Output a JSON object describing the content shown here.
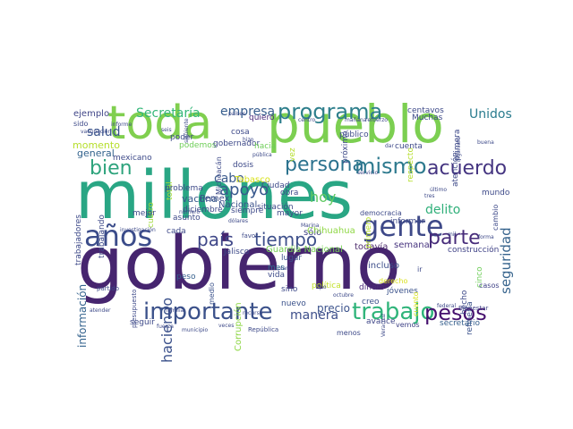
{
  "title": "",
  "words": [
    {
      "text": "gobierno",
      "color": "#46256f"
    },
    {
      "text": "millones",
      "color": "#29a684"
    },
    {
      "text": "pueblo",
      "color": "#7ccf51"
    },
    {
      "text": "toda",
      "color": "#80cf4f"
    },
    {
      "text": "años",
      "color": "#3b4c8a"
    },
    {
      "text": "gente",
      "color": "#3e4988"
    },
    {
      "text": "programa",
      "color": "#2e7f8c"
    },
    {
      "text": "importante",
      "color": "#3b518a"
    },
    {
      "text": "trabajo",
      "color": "#2fb47a"
    },
    {
      "text": "pesos",
      "color": "#45106e"
    },
    {
      "text": "persona",
      "color": "#2b728e"
    },
    {
      "text": "mismo",
      "color": "#2e7a8e"
    },
    {
      "text": "acuerdo",
      "color": "#453581"
    },
    {
      "text": "país",
      "color": "#3f4788"
    },
    {
      "text": "tiempo",
      "color": "#3d4f8a"
    },
    {
      "text": "parte",
      "color": "#472c7a"
    },
    {
      "text": "bien",
      "color": "#2da37c"
    },
    {
      "text": "hoy",
      "color": "#5ec962"
    },
    {
      "text": "apoyo",
      "color": "#38588c"
    },
    {
      "text": "Unidos",
      "color": "#2a7c8e"
    },
    {
      "text": "Secretaría",
      "color": "#35b779"
    },
    {
      "text": "empresa",
      "color": "#365d8d"
    },
    {
      "text": "salud",
      "color": "#3a548c"
    },
    {
      "text": "seguridad",
      "color": "#37648d"
    },
    {
      "text": "manera",
      "color": "#3d4e8a"
    },
    {
      "text": "precio",
      "color": "#3b528b"
    },
    {
      "text": "delito",
      "color": "#30b07a"
    },
    {
      "text": "haciendo",
      "color": "#3b518b"
    },
    {
      "text": "cabo",
      "color": "#3b5a8c"
    },
    {
      "text": "vacuna",
      "color": "#38598c"
    },
    {
      "text": "información",
      "color": "#33628d"
    },
    {
      "text": "semana",
      "color": "#46337e"
    },
    {
      "text": "sólo",
      "color": "#414487"
    },
    {
      "text": "Pemex",
      "color": "#3d4d8a"
    },
    {
      "text": "Nacional",
      "color": "#3b528b"
    },
    {
      "text": "general",
      "color": "#33638d"
    },
    {
      "text": "momento",
      "color": "#b5de2b"
    },
    {
      "text": "ejemplo",
      "color": "#404688"
    },
    {
      "text": "total",
      "color": "#a5db36"
    },
    {
      "text": "Corrupción",
      "color": "#8ed645"
    },
    {
      "text": "Tabasco",
      "color": "#d8e219"
    },
    {
      "text": "Chihuahua",
      "color": "#8fd744"
    },
    {
      "text": "Guardia Nacional",
      "color": "#75d054"
    },
    {
      "text": "Jalisco",
      "color": "#3e4a89"
    },
    {
      "text": "todavía",
      "color": "#4f2e6f"
    },
    {
      "text": "construcción",
      "color": "#404387"
    },
    {
      "text": "refinería",
      "color": "#3b528b"
    },
    {
      "text": "secretario",
      "color": "#355f8d"
    },
    {
      "text": "Bienestar",
      "color": "#414487"
    },
    {
      "text": "cinco",
      "color": "#6ece58"
    },
    {
      "text": "hecho",
      "color": "#3e4a89"
    },
    {
      "text": "casos",
      "color": "#404387"
    },
    {
      "text": "incluso",
      "color": "#3d4e8a"
    },
    {
      "text": "jóvenes",
      "color": "#3b528b"
    },
    {
      "text": "dinero",
      "color": "#4b2a7a"
    },
    {
      "text": "política",
      "color": "#c3e02c"
    },
    {
      "text": "derecho",
      "color": "#d9e021"
    },
    {
      "text": "creo",
      "color": "#3b518b"
    },
    {
      "text": "avance",
      "color": "#3f4788"
    },
    {
      "text": "vemos",
      "color": "#404387"
    },
    {
      "text": "nuevo",
      "color": "#3b528b"
    },
    {
      "text": "vida",
      "color": "#3e4a89"
    },
    {
      "text": "sino",
      "color": "#3e4a89"
    },
    {
      "text": "lugar",
      "color": "#3b528b"
    },
    {
      "text": "mes",
      "color": "#2e6b8e"
    },
    {
      "text": "medio",
      "color": "#3b528b"
    },
    {
      "text": "peso",
      "color": "#355f8d"
    },
    {
      "text": "seguir",
      "color": "#3e4a89"
    },
    {
      "text": "cada",
      "color": "#3e4a89"
    },
    {
      "text": "trabajadores",
      "color": "#3e4a89"
    },
    {
      "text": "trabajando",
      "color": "#3e4a89"
    },
    {
      "text": "mexicano",
      "color": "#3e4a89"
    },
    {
      "text": "cuatro",
      "color": "#a0da39"
    },
    {
      "text": "problema",
      "color": "#3e4a89"
    },
    {
      "text": "mejor",
      "color": "#3e4a89"
    },
    {
      "text": "asunto",
      "color": "#3e4a89"
    },
    {
      "text": "diciembre",
      "color": "#3e4a89"
    },
    {
      "text": "poder",
      "color": "#3e4a89"
    },
    {
      "text": "podemos",
      "color": "#6ece58"
    },
    {
      "text": "gobernador",
      "color": "#3e4a89"
    },
    {
      "text": "dosis",
      "color": "#3e4a89"
    },
    {
      "text": "cosa",
      "color": "#3e4a89"
    },
    {
      "text": "quiero",
      "color": "#4b2a7a"
    },
    {
      "text": "hacia",
      "color": "#6ece58"
    },
    {
      "text": "obra",
      "color": "#3e4a89"
    },
    {
      "text": "mayor",
      "color": "#3e4a89"
    },
    {
      "text": "situación",
      "color": "#3e4a89"
    },
    {
      "text": "siempre",
      "color": "#3e4a89"
    },
    {
      "text": "Ciudad",
      "color": "#3e4a89"
    },
    {
      "text": "vez",
      "color": "#b5de2b"
    },
    {
      "text": "público",
      "color": "#3e4a89"
    },
    {
      "text": "próximo",
      "color": "#3e4a89"
    },
    {
      "text": "primero",
      "color": "#b5de2b"
    },
    {
      "text": "respecto",
      "color": "#b5de2b"
    },
    {
      "text": "cuenta",
      "color": "#3e4a89"
    },
    {
      "text": "Muchas",
      "color": "#3e4a89"
    },
    {
      "text": "centavos",
      "color": "#3e4a89"
    },
    {
      "text": "atención",
      "color": "#3e4a89"
    },
    {
      "text": "primera",
      "color": "#3e4a89"
    },
    {
      "text": "mundo",
      "color": "#3e4a89"
    },
    {
      "text": "cambio",
      "color": "#3e4a89"
    },
    {
      "text": "informar",
      "color": "#3e4a89"
    },
    {
      "text": "democracia",
      "color": "#3e4a89"
    },
    {
      "text": "cuanto",
      "color": "#d8e219"
    },
    {
      "text": "ir",
      "color": "#3e4a89"
    },
    {
      "text": "Michoacán",
      "color": "#3e4a89"
    },
    {
      "text": "vacunación",
      "color": "#3e4a89"
    },
    {
      "text": "informe",
      "color": "#3e4a89"
    },
    {
      "text": "sido",
      "color": "#3e4a89"
    },
    {
      "text": "seis",
      "color": "#3e4a89"
    },
    {
      "text": "siguiente",
      "color": "#3e4a89"
    },
    {
      "text": "investigación",
      "color": "#3e4a89"
    },
    {
      "text": "favor",
      "color": "#3e4a89"
    },
    {
      "text": "dólares",
      "color": "#3e4a89"
    },
    {
      "text": "número",
      "color": "#3e4a89"
    },
    {
      "text": "familia",
      "color": "#3e4a89"
    },
    {
      "text": "recurso",
      "color": "#3e4a89"
    },
    {
      "text": "veces",
      "color": "#3e4a89"
    },
    {
      "text": "República",
      "color": "#3e4a89"
    },
    {
      "text": "municipio",
      "color": "#3e4a89"
    },
    {
      "text": "fuerza",
      "color": "#3e4a89"
    },
    {
      "text": "atender",
      "color": "#3e4a89"
    },
    {
      "text": "partido",
      "color": "#3e4a89"
    },
    {
      "text": "presupuesto",
      "color": "#3e4a89"
    },
    {
      "text": "menos",
      "color": "#3e4a89"
    },
    {
      "text": "servicio",
      "color": "#3e4a89"
    },
    {
      "text": "Marina",
      "color": "#3e4a89"
    },
    {
      "text": "tipo",
      "color": "#3e4a89"
    },
    {
      "text": "Veracruz",
      "color": "#3e4a89"
    },
    {
      "text": "federal",
      "color": "#3e4a89"
    },
    {
      "text": "octubre",
      "color": "#3e4a89"
    },
    {
      "text": "buena",
      "color": "#3e4a89"
    },
    {
      "text": "ingeniero",
      "color": "#3e4a89"
    },
    {
      "text": "mañana",
      "color": "#3e4a89"
    },
    {
      "text": "refuerzo",
      "color": "#3e4a89"
    },
    {
      "text": "países",
      "color": "#3e4a89"
    },
    {
      "text": "hizo",
      "color": "#3e4a89"
    },
    {
      "text": "último",
      "color": "#3e4a89"
    },
    {
      "text": "plan",
      "color": "#3e4a89"
    },
    {
      "text": "pública",
      "color": "#3e4a89"
    },
    {
      "text": "forma",
      "color": "#3e4a89"
    },
    {
      "text": "centro",
      "color": "#3e4a89"
    },
    {
      "text": "dar",
      "color": "#3e4a89"
    },
    {
      "text": "tres",
      "color": "#3e4a89"
    },
    {
      "text": "mil",
      "color": "#3e4a89"
    }
  ]
}
